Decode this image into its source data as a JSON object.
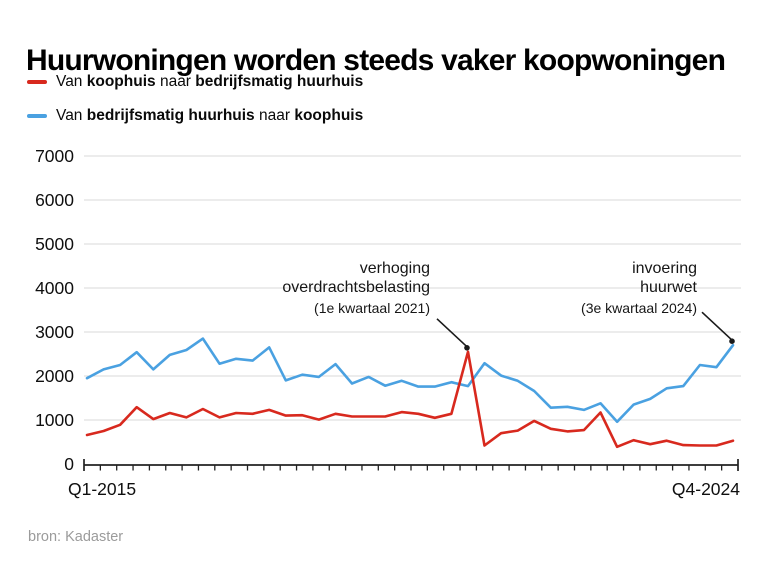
{
  "title": "Huurwoningen worden steeds vaker koopwoningen",
  "legend": {
    "items": [
      {
        "color_key": "red",
        "parts": [
          {
            "text": "Van "
          },
          {
            "text": "koophuis"
          },
          {
            "text": " naar "
          },
          {
            "text": "bedrijfsmatig huurhuis"
          }
        ]
      },
      {
        "color_key": "blue",
        "parts": [
          {
            "text": "Van "
          },
          {
            "text": "bedrijfsmatig huurhuis"
          },
          {
            "text": " naar "
          },
          {
            "text": "koophuis"
          }
        ]
      }
    ]
  },
  "annotations": [
    {
      "line1": "verhoging",
      "line2": "overdrachtsbelasting",
      "sub": "(1e kwartaal 2021)",
      "target_series": "red",
      "target_index": 23
    },
    {
      "line1": "invoering",
      "line2": "huurwet",
      "sub": "(3e kwartaal 2024)",
      "target_series": "blue",
      "target_index": 39
    }
  ],
  "x_axis": {
    "label_left": "Q1-2015",
    "label_right": "Q4-2024"
  },
  "source": "bron: Kadaster",
  "colors": {
    "red": "#d8291e",
    "blue": "#4aa1e1",
    "grid": "#d9d9d9",
    "axis": "#222222",
    "text": "#0f0f0f",
    "muted": "#9b9b9b",
    "arrow": "#1a1a1a"
  },
  "chart_data": {
    "type": "line",
    "title": "Huurwoningen worden steeds vaker koopwoningen",
    "x_unit": "quarter",
    "x_start": "Q1-2015",
    "x_end": "Q4-2024",
    "n_points": 40,
    "ylim": [
      0,
      7000
    ],
    "yticks": [
      0,
      1000,
      2000,
      3000,
      4000,
      5000,
      6000,
      7000
    ],
    "grid": true,
    "legend_position": "top-left",
    "series": [
      {
        "name": "Van bedrijfsmatig huurhuis naar koophuis",
        "color_key": "blue",
        "values": [
          1950,
          2150,
          2250,
          2540,
          2150,
          2480,
          2590,
          2850,
          2280,
          2390,
          2350,
          2650,
          1900,
          2030,
          1980,
          2270,
          1830,
          1980,
          1780,
          1890,
          1760,
          1760,
          1860,
          1770,
          2290,
          2010,
          1890,
          1660,
          1280,
          1300,
          1230,
          1380,
          960,
          1350,
          1480,
          1720,
          1770,
          2250,
          2200,
          2700
        ]
      },
      {
        "name": "Van koophuis naar bedrijfsmatig huurhuis",
        "color_key": "red",
        "values": [
          660,
          750,
          890,
          1290,
          1020,
          1160,
          1060,
          1250,
          1060,
          1160,
          1140,
          1230,
          1100,
          1110,
          1010,
          1140,
          1080,
          1080,
          1080,
          1180,
          1140,
          1050,
          1140,
          2550,
          420,
          700,
          760,
          980,
          800,
          740,
          770,
          1170,
          390,
          540,
          450,
          530,
          430,
          420,
          420,
          530
        ]
      }
    ]
  }
}
